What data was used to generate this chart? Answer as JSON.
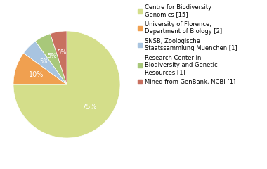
{
  "labels": [
    "Centre for Biodiversity\nGenomics [15]",
    "University of Florence,\nDepartment of Biology [2]",
    "SNSB, Zoologische\nStaatssammlung Muenchen [1]",
    "Research Center in\nBiodiversity and Genetic\nResources [1]",
    "Mined from GenBank, NCBI [1]"
  ],
  "values": [
    75,
    10,
    5,
    5,
    5
  ],
  "colors": [
    "#d4de8a",
    "#f0a050",
    "#a8c4e0",
    "#a8c87a",
    "#c87060"
  ],
  "pct_labels": [
    "75%",
    "10%",
    "5%",
    "5%",
    "5%"
  ],
  "pct_colors": [
    "white",
    "white",
    "white",
    "white",
    "white"
  ],
  "startangle": 90,
  "background_color": "#ffffff",
  "legend_fontsize": 6.0
}
